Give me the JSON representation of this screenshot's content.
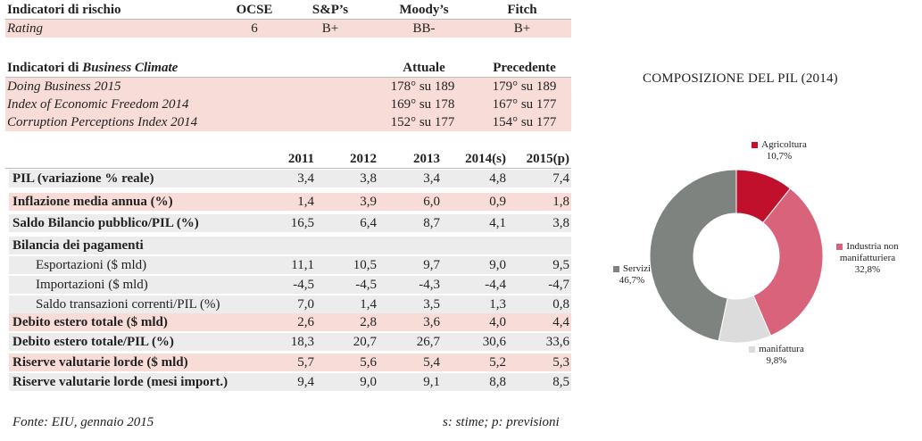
{
  "risk": {
    "title": "Indicatori di rischio",
    "columns": [
      "OCSE",
      "S&P’s",
      "Moody’s",
      "Fitch"
    ],
    "row_label": "Rating",
    "row_values": [
      "6",
      "B+",
      "BB-",
      "B+"
    ]
  },
  "climate": {
    "title_plain": "Indicatori di ",
    "title_italic": "Business Climate",
    "col_current": "Attuale",
    "col_previous": "Precedente",
    "rows": [
      {
        "label": "Doing Business 2015",
        "current": "178° su 189",
        "previous": "179° su 189"
      },
      {
        "label": "Index of Economic Freedom 2014",
        "current": "169° su 178",
        "previous": "167° su 177"
      },
      {
        "label": "Corruption Perceptions Index 2014",
        "current": "152° su 177",
        "previous": "154° su 177"
      }
    ]
  },
  "macro": {
    "years": [
      "2011",
      "2012",
      "2013",
      "2014(s)",
      "2015(p)"
    ],
    "rows": [
      {
        "label": "PIL (variazione % reale)",
        "values": [
          "3,4",
          "3,8",
          "3,4",
          "4,8",
          "7,4"
        ]
      },
      {
        "label": "Inflazione media annua (%)",
        "values": [
          "1,4",
          "3,9",
          "6,0",
          "0,9",
          "1,8"
        ]
      },
      {
        "label": "Saldo Bilancio pubblico/PIL (%)",
        "values": [
          "16,5",
          "6,4",
          "8,7",
          "4,1",
          "3,8"
        ]
      },
      {
        "label": "Bilancia dei pagamenti",
        "values": [
          "",
          "",
          "",
          "",
          ""
        ]
      },
      {
        "label": "Esportazioni ($ mld)",
        "values": [
          "11,1",
          "10,5",
          "9,7",
          "9,0",
          "9,5"
        ]
      },
      {
        "label": "Importazioni ($ mld)",
        "values": [
          "-4,5",
          "-4,5",
          "-4,3",
          "-4,4",
          "-4,7"
        ]
      },
      {
        "label": "Saldo transazioni correnti/PIL (%)",
        "values": [
          "7,0",
          "1,4",
          "3,5",
          "1,3",
          "0,8"
        ]
      },
      {
        "label": "Debito estero totale ($ mld)",
        "values": [
          "2,6",
          "2,8",
          "3,6",
          "4,0",
          "4,4"
        ]
      },
      {
        "label": "Debito estero totale/PIL (%)",
        "values": [
          "18,3",
          "20,7",
          "26,7",
          "30,6",
          "33,6"
        ]
      },
      {
        "label": "Riserve valutarie lorde ($ mld)",
        "values": [
          "5,7",
          "5,6",
          "5,4",
          "5,2",
          "5,3"
        ]
      },
      {
        "label": "Riserve valutarie lorde (mesi import.)",
        "values": [
          "9,4",
          "9,0",
          "9,1",
          "8,8",
          "8,5"
        ]
      }
    ]
  },
  "footer": {
    "source": "Fonte: EIU, gennaio 2015",
    "note": "s: stime; p: previsioni"
  },
  "chart_data": {
    "type": "pie",
    "title": "COMPOSIZIONE DEL PIL (2014)",
    "categories": [
      "Agricoltura",
      "Industria non manifatturiera",
      "manifattura",
      "Servizi"
    ],
    "values": [
      10.7,
      32.8,
      9.8,
      46.7
    ],
    "value_labels": [
      "10,7%",
      "32,8%",
      "9,8%",
      "46,7%"
    ],
    "colors": [
      "#c0102c",
      "#d9637a",
      "#dcdcdc",
      "#7f8380"
    ]
  }
}
